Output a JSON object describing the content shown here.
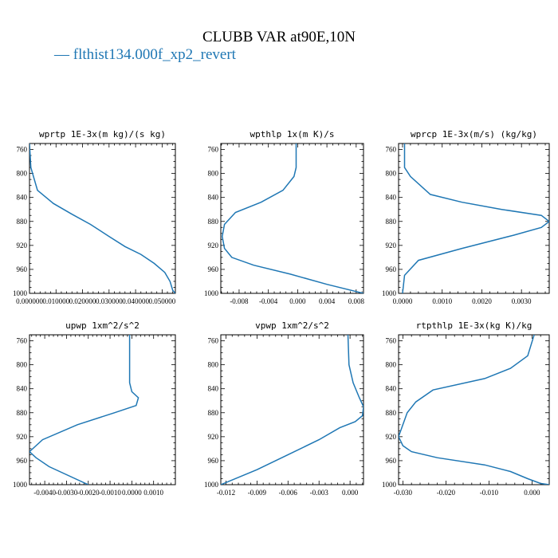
{
  "figure": {
    "title": "CLUBB VAR at90E,10N",
    "legend_label": "flthist134.000f_xp2_revert",
    "legend_marker": "—",
    "line_color": "#1f77b4"
  },
  "chart_data": [
    {
      "type": "line",
      "title": "wprtp  1E-3x(m kg)/(s kg)",
      "xlim": [
        0.0,
        0.055
      ],
      "ylim": [
        1000,
        750
      ],
      "x_ticks": [
        0.0,
        0.01,
        0.02,
        0.03,
        0.04,
        0.05
      ],
      "x_tick_labels": [
        "0.000000",
        "0.010000",
        "0.020000",
        "0.030000",
        "0.040000",
        "0.050000"
      ],
      "y_ticks": [
        760,
        800,
        840,
        880,
        920,
        960,
        1000
      ],
      "y_tick_labels": [
        "760",
        "800",
        "840",
        "880",
        "920",
        "960",
        "1000"
      ],
      "series": [
        {
          "x": [
            0.0,
            0.0005,
            0.003,
            0.009,
            0.016,
            0.023,
            0.03,
            0.036,
            0.042,
            0.047,
            0.051,
            0.053,
            0.054,
            0.055
          ],
          "y": [
            750,
            790,
            828,
            850,
            868,
            885,
            905,
            922,
            935,
            950,
            965,
            980,
            995,
            1000
          ]
        }
      ]
    },
    {
      "type": "line",
      "title": "wpthlp  1x(m K)/s",
      "xlim": [
        -0.0105,
        0.009
      ],
      "ylim": [
        1000,
        750
      ],
      "x_ticks": [
        -0.008,
        -0.004,
        0.0,
        0.004,
        0.008
      ],
      "x_tick_labels": [
        "-0.008",
        "-0.004",
        "0.000",
        "0.004",
        "0.008"
      ],
      "y_ticks": [
        760,
        800,
        840,
        880,
        920,
        960,
        1000
      ],
      "y_tick_labels": [
        "760",
        "800",
        "840",
        "880",
        "920",
        "960",
        "1000"
      ],
      "series": [
        {
          "x": [
            -0.0002,
            -0.0002,
            -0.0005,
            -0.002,
            -0.005,
            -0.0085,
            -0.01,
            -0.0103,
            -0.01,
            -0.009,
            -0.006,
            -0.001,
            0.004,
            0.009
          ],
          "y": [
            750,
            790,
            805,
            828,
            848,
            865,
            885,
            905,
            925,
            940,
            953,
            968,
            985,
            1000
          ]
        }
      ]
    },
    {
      "type": "line",
      "title": "wprcp  1E-3x(m/s) (kg/kg)",
      "xlim": [
        -0.0001,
        0.0037
      ],
      "ylim": [
        1000,
        750
      ],
      "x_ticks": [
        0.0,
        0.001,
        0.002,
        0.003
      ],
      "x_tick_labels": [
        "0.0000",
        "0.0010",
        "0.0020",
        "0.0030"
      ],
      "y_ticks": [
        760,
        800,
        840,
        880,
        920,
        960,
        1000
      ],
      "y_tick_labels": [
        "760",
        "800",
        "840",
        "880",
        "920",
        "960",
        "1000"
      ],
      "series": [
        {
          "x": [
            5e-05,
            5e-05,
            0.0002,
            0.0007,
            0.0015,
            0.0025,
            0.0035,
            0.0037,
            0.0035,
            0.0028,
            0.0015,
            0.0004,
            5e-05,
            0.0
          ],
          "y": [
            750,
            790,
            805,
            835,
            848,
            860,
            870,
            880,
            890,
            903,
            925,
            945,
            970,
            1000
          ]
        }
      ]
    },
    {
      "type": "line",
      "title": "upwp  1xm^2/s^2",
      "xlim": [
        -0.0047,
        0.002
      ],
      "ylim": [
        1000,
        750
      ],
      "x_ticks": [
        -0.004,
        -0.003,
        -0.002,
        -0.001,
        0.0,
        0.001
      ],
      "x_tick_labels": [
        "-0.0040",
        "-0.0030",
        "-0.0020",
        "-0.0010",
        "0.0000",
        "0.0010"
      ],
      "y_ticks": [
        760,
        800,
        840,
        880,
        920,
        960,
        1000
      ],
      "y_tick_labels": [
        "760",
        "800",
        "840",
        "880",
        "920",
        "960",
        "1000"
      ],
      "series": [
        {
          "x": [
            -0.0001,
            -0.0001,
            -0.0001,
            0.0,
            0.0003,
            0.0002,
            -0.0008,
            -0.0025,
            -0.0041,
            -0.0047,
            -0.0044,
            -0.0038,
            -0.002
          ],
          "y": [
            750,
            800,
            830,
            845,
            855,
            868,
            880,
            900,
            925,
            945,
            955,
            970,
            1000
          ]
        }
      ]
    },
    {
      "type": "line",
      "title": "vpwp  1xm^2/s^2",
      "xlim": [
        -0.0125,
        0.0013
      ],
      "ylim": [
        1000,
        750
      ],
      "x_ticks": [
        -0.012,
        -0.009,
        -0.006,
        -0.003,
        0.0
      ],
      "x_tick_labels": [
        "-0.012",
        "-0.009",
        "-0.006",
        "-0.003",
        "0.000"
      ],
      "y_ticks": [
        760,
        800,
        840,
        880,
        920,
        960,
        1000
      ],
      "y_tick_labels": [
        "760",
        "800",
        "840",
        "880",
        "920",
        "960",
        "1000"
      ],
      "series": [
        {
          "x": [
            -0.0002,
            -0.0001,
            0.0003,
            0.0009,
            0.0013,
            0.0012,
            0.0005,
            -0.001,
            -0.003,
            -0.006,
            -0.009,
            -0.0125
          ],
          "y": [
            750,
            800,
            830,
            855,
            870,
            885,
            895,
            905,
            925,
            950,
            975,
            1000
          ]
        }
      ]
    },
    {
      "type": "line",
      "title": "rtpthlp  1E-3x(kg K)/kg",
      "xlim": [
        -0.031,
        0.004
      ],
      "ylim": [
        1000,
        750
      ],
      "x_ticks": [
        -0.03,
        -0.02,
        -0.01,
        0.0
      ],
      "x_tick_labels": [
        "-0.030",
        "-0.020",
        "-0.010",
        "0.000"
      ],
      "y_ticks": [
        760,
        800,
        840,
        880,
        920,
        960,
        1000
      ],
      "y_tick_labels": [
        "760",
        "800",
        "840",
        "880",
        "920",
        "960",
        "1000"
      ],
      "series": [
        {
          "x": [
            0.0005,
            -0.001,
            -0.005,
            -0.011,
            -0.023,
            -0.027,
            -0.029,
            -0.03,
            -0.031,
            -0.03,
            -0.028,
            -0.022,
            -0.011,
            -0.005,
            -0.001,
            0.002,
            0.004
          ],
          "y": [
            750,
            785,
            806,
            823,
            842,
            862,
            880,
            900,
            920,
            935,
            945,
            955,
            967,
            978,
            990,
            998,
            1000
          ]
        }
      ]
    }
  ]
}
